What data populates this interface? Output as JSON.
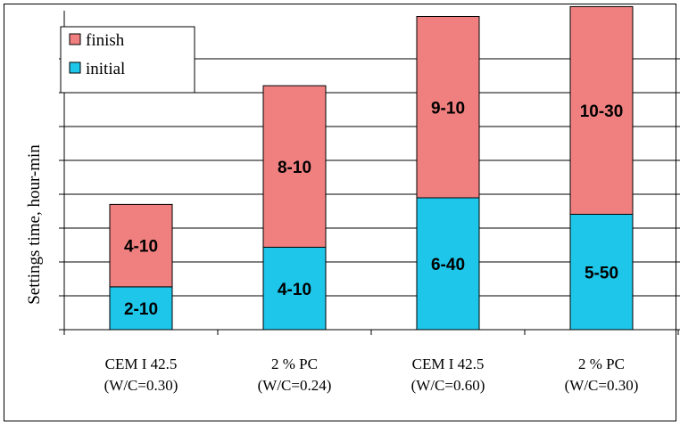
{
  "chart_data": {
    "type": "bar",
    "stacked": true,
    "ylabel": "Settings time, hour-min",
    "categories": [
      [
        "CEM I 42.5",
        "(W/C=0.30)"
      ],
      [
        "2 % PC",
        "(W/C=0.24)"
      ],
      [
        "CEM I 42.5",
        "(W/C=0.60)"
      ],
      [
        "2 % PC",
        "(W/C=0.30)"
      ]
    ],
    "series": [
      {
        "name": "initial",
        "color": "#1ec6ea",
        "values": [
          130,
          250,
          400,
          350
        ],
        "labels": [
          "2-10",
          "4-10",
          "6-40",
          "5-50"
        ]
      },
      {
        "name": "finish",
        "color": "#f08080",
        "values": [
          250,
          490,
          550,
          630
        ],
        "labels": [
          "4-10",
          "8-10",
          "9-10",
          "10-30"
        ]
      }
    ],
    "ylim": [
      0,
      1000
    ],
    "grid": true,
    "legend": {
      "position": "top-left",
      "entries": [
        "finish",
        "initial"
      ]
    }
  }
}
